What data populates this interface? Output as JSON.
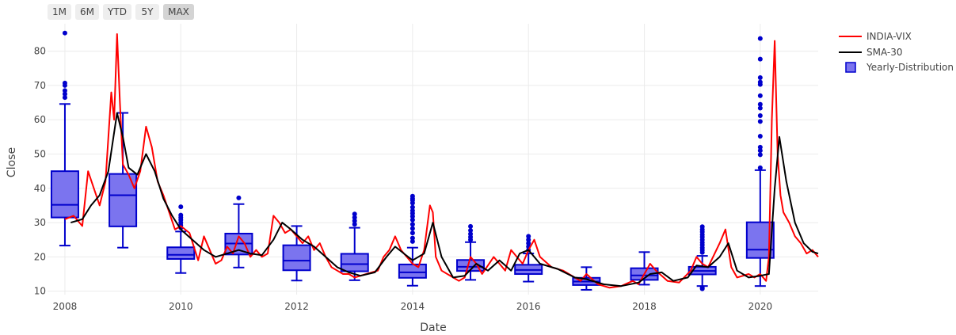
{
  "range_selector": {
    "buttons": [
      "1M",
      "6M",
      "YTD",
      "5Y",
      "MAX"
    ],
    "active": "MAX"
  },
  "chart_data": {
    "type": "line",
    "title": "",
    "xlabel": "Date",
    "ylabel": "Close",
    "xlim": [
      2007.7,
      2021.0
    ],
    "ylim": [
      9.0,
      88.0
    ],
    "x_ticks": [
      "2008",
      "2010",
      "2012",
      "2014",
      "2016",
      "2018",
      "2020"
    ],
    "y_ticks": [
      10,
      20,
      30,
      40,
      50,
      60,
      70,
      80
    ],
    "grid": true,
    "legend": {
      "placement": "top-right",
      "entries": [
        "INDIA-VIX",
        "SMA-30",
        "Yearly-Distribution"
      ]
    },
    "colors": {
      "vix": "#ff0000",
      "sma": "#000000",
      "box_fill": "#7b74ef",
      "box_line": "#0000cc",
      "grid": "#ebebeb"
    },
    "series": [
      {
        "name": "INDIA-VIX",
        "points": [
          [
            2008.0,
            31
          ],
          [
            2008.15,
            32
          ],
          [
            2008.3,
            29
          ],
          [
            2008.4,
            45
          ],
          [
            2008.5,
            40
          ],
          [
            2008.6,
            35
          ],
          [
            2008.7,
            42
          ],
          [
            2008.8,
            68
          ],
          [
            2008.85,
            60
          ],
          [
            2008.9,
            85
          ],
          [
            2008.95,
            65
          ],
          [
            2009.0,
            47
          ],
          [
            2009.1,
            44
          ],
          [
            2009.2,
            40
          ],
          [
            2009.3,
            45
          ],
          [
            2009.4,
            58
          ],
          [
            2009.5,
            52
          ],
          [
            2009.6,
            42
          ],
          [
            2009.7,
            38
          ],
          [
            2009.8,
            33
          ],
          [
            2009.9,
            28
          ],
          [
            2010.0,
            29
          ],
          [
            2010.15,
            27
          ],
          [
            2010.3,
            19
          ],
          [
            2010.4,
            26
          ],
          [
            2010.5,
            22
          ],
          [
            2010.6,
            18
          ],
          [
            2010.7,
            19
          ],
          [
            2010.8,
            23
          ],
          [
            2010.9,
            21
          ],
          [
            2011.0,
            26
          ],
          [
            2011.1,
            24
          ],
          [
            2011.2,
            20
          ],
          [
            2011.3,
            22
          ],
          [
            2011.4,
            20
          ],
          [
            2011.5,
            21
          ],
          [
            2011.6,
            32
          ],
          [
            2011.7,
            30
          ],
          [
            2011.8,
            27
          ],
          [
            2011.9,
            28
          ],
          [
            2012.0,
            26
          ],
          [
            2012.1,
            24
          ],
          [
            2012.2,
            26
          ],
          [
            2012.3,
            22
          ],
          [
            2012.4,
            24
          ],
          [
            2012.5,
            20
          ],
          [
            2012.6,
            17
          ],
          [
            2012.7,
            16
          ],
          [
            2012.8,
            15
          ],
          [
            2012.9,
            15
          ],
          [
            2013.0,
            14
          ],
          [
            2013.2,
            15
          ],
          [
            2013.4,
            16
          ],
          [
            2013.5,
            20
          ],
          [
            2013.6,
            22
          ],
          [
            2013.7,
            26
          ],
          [
            2013.8,
            22
          ],
          [
            2013.9,
            20
          ],
          [
            2014.0,
            18
          ],
          [
            2014.1,
            17
          ],
          [
            2014.2,
            22
          ],
          [
            2014.3,
            35
          ],
          [
            2014.35,
            33
          ],
          [
            2014.4,
            20
          ],
          [
            2014.5,
            16
          ],
          [
            2014.7,
            14
          ],
          [
            2014.8,
            13
          ],
          [
            2014.9,
            14
          ],
          [
            2015.0,
            20
          ],
          [
            2015.1,
            18
          ],
          [
            2015.2,
            15
          ],
          [
            2015.4,
            20
          ],
          [
            2015.6,
            16
          ],
          [
            2015.7,
            22
          ],
          [
            2015.8,
            20
          ],
          [
            2015.9,
            18
          ],
          [
            2016.0,
            22
          ],
          [
            2016.1,
            25
          ],
          [
            2016.2,
            20
          ],
          [
            2016.4,
            17
          ],
          [
            2016.6,
            16
          ],
          [
            2016.8,
            14
          ],
          [
            2016.9,
            13
          ],
          [
            2017.0,
            15
          ],
          [
            2017.2,
            12
          ],
          [
            2017.4,
            11
          ],
          [
            2017.6,
            11.5
          ],
          [
            2017.8,
            13
          ],
          [
            2017.9,
            12
          ],
          [
            2018.0,
            15
          ],
          [
            2018.1,
            18
          ],
          [
            2018.2,
            16
          ],
          [
            2018.4,
            13
          ],
          [
            2018.6,
            12.5
          ],
          [
            2018.8,
            16
          ],
          [
            2018.9,
            20
          ],
          [
            2019.0,
            18
          ],
          [
            2019.1,
            17
          ],
          [
            2019.3,
            24
          ],
          [
            2019.4,
            28
          ],
          [
            2019.5,
            17
          ],
          [
            2019.6,
            14
          ],
          [
            2019.8,
            15
          ],
          [
            2019.9,
            14
          ],
          [
            2020.0,
            15
          ],
          [
            2020.1,
            13
          ],
          [
            2020.15,
            20
          ],
          [
            2020.2,
            60
          ],
          [
            2020.25,
            83
          ],
          [
            2020.3,
            50
          ],
          [
            2020.35,
            38
          ],
          [
            2020.4,
            33
          ],
          [
            2020.5,
            30
          ],
          [
            2020.6,
            26
          ],
          [
            2020.7,
            24
          ],
          [
            2020.8,
            21
          ],
          [
            2020.9,
            22
          ],
          [
            2021.0,
            20
          ]
        ]
      },
      {
        "name": "SMA-30",
        "points": [
          [
            2008.1,
            30
          ],
          [
            2008.3,
            31
          ],
          [
            2008.45,
            35
          ],
          [
            2008.6,
            38
          ],
          [
            2008.75,
            45
          ],
          [
            2008.9,
            62
          ],
          [
            2009.0,
            55
          ],
          [
            2009.1,
            46
          ],
          [
            2009.25,
            44
          ],
          [
            2009.4,
            50
          ],
          [
            2009.55,
            45
          ],
          [
            2009.7,
            37
          ],
          [
            2009.85,
            32
          ],
          [
            2010.0,
            28
          ],
          [
            2010.2,
            25
          ],
          [
            2010.4,
            22
          ],
          [
            2010.6,
            20
          ],
          [
            2010.8,
            21
          ],
          [
            2011.0,
            22
          ],
          [
            2011.2,
            21
          ],
          [
            2011.4,
            20.5
          ],
          [
            2011.6,
            25
          ],
          [
            2011.75,
            30
          ],
          [
            2011.9,
            28
          ],
          [
            2012.1,
            25
          ],
          [
            2012.3,
            23
          ],
          [
            2012.5,
            20
          ],
          [
            2012.7,
            17
          ],
          [
            2012.9,
            15.5
          ],
          [
            2013.1,
            14.5
          ],
          [
            2013.35,
            15.5
          ],
          [
            2013.55,
            20
          ],
          [
            2013.7,
            23
          ],
          [
            2013.85,
            21
          ],
          [
            2014.0,
            19
          ],
          [
            2014.2,
            21
          ],
          [
            2014.35,
            30
          ],
          [
            2014.5,
            20
          ],
          [
            2014.7,
            14
          ],
          [
            2014.9,
            14.5
          ],
          [
            2015.1,
            18
          ],
          [
            2015.3,
            16
          ],
          [
            2015.5,
            19
          ],
          [
            2015.7,
            16
          ],
          [
            2015.85,
            21
          ],
          [
            2016.0,
            22
          ],
          [
            2016.2,
            18
          ],
          [
            2016.5,
            16.5
          ],
          [
            2016.8,
            14
          ],
          [
            2017.0,
            13.5
          ],
          [
            2017.3,
            12
          ],
          [
            2017.6,
            11.5
          ],
          [
            2017.9,
            12.5
          ],
          [
            2018.1,
            15
          ],
          [
            2018.3,
            15.5
          ],
          [
            2018.5,
            13
          ],
          [
            2018.75,
            14
          ],
          [
            2018.9,
            17.5
          ],
          [
            2019.1,
            17
          ],
          [
            2019.3,
            20
          ],
          [
            2019.45,
            24
          ],
          [
            2019.6,
            16
          ],
          [
            2019.8,
            14
          ],
          [
            2020.0,
            14.5
          ],
          [
            2020.15,
            15
          ],
          [
            2020.25,
            40
          ],
          [
            2020.33,
            55
          ],
          [
            2020.45,
            42
          ],
          [
            2020.6,
            30
          ],
          [
            2020.75,
            24
          ],
          [
            2020.9,
            21.5
          ],
          [
            2021.0,
            21
          ]
        ]
      }
    ],
    "boxes": {
      "name": "Yearly-Distribution",
      "items": [
        {
          "year": "2008",
          "x": 2008.0,
          "min": 23.3,
          "q1": 31.5,
          "median": 35.2,
          "q3": 45.0,
          "max": 64.6,
          "outliers": [
            85.3,
            70.7,
            70.0,
            68.5,
            67.5,
            66.5
          ]
        },
        {
          "year": "2009",
          "x": 2009.0,
          "min": 22.7,
          "q1": 28.9,
          "median": 38.0,
          "q3": 44.2,
          "max": 62.0,
          "outliers": []
        },
        {
          "year": "2010",
          "x": 2010.0,
          "min": 15.3,
          "q1": 19.4,
          "median": 20.6,
          "q3": 22.8,
          "max": 27.4,
          "outliers": [
            34.6,
            32.2,
            31.5,
            30.8,
            30.0,
            29.2,
            28.5
          ]
        },
        {
          "year": "2011",
          "x": 2011.0,
          "min": 16.9,
          "q1": 20.7,
          "median": 23.9,
          "q3": 26.8,
          "max": 35.4,
          "outliers": [
            37.2
          ]
        },
        {
          "year": "2012",
          "x": 2012.0,
          "min": 13.1,
          "q1": 16.1,
          "median": 18.9,
          "q3": 23.4,
          "max": 29.0,
          "outliers": []
        },
        {
          "year": "2013",
          "x": 2013.0,
          "min": 13.2,
          "q1": 15.8,
          "median": 17.9,
          "q3": 20.9,
          "max": 28.5,
          "outliers": [
            32.5,
            31.5,
            30.5,
            29.5
          ]
        },
        {
          "year": "2014",
          "x": 2014.0,
          "min": 11.6,
          "q1": 13.9,
          "median": 15.5,
          "q3": 17.8,
          "max": 22.7,
          "outliers": [
            37.7,
            37.0,
            36.5,
            35.7,
            34.5,
            33.5,
            32.7,
            31.8,
            30.8,
            29.5,
            28.3,
            27.0,
            25.5,
            24.5
          ]
        },
        {
          "year": "2015",
          "x": 2015.0,
          "min": 13.3,
          "q1": 15.9,
          "median": 17.1,
          "q3": 19.1,
          "max": 24.3,
          "outliers": [
            28.9,
            27.7,
            26.7,
            25.8,
            25.0
          ]
        },
        {
          "year": "2016",
          "x": 2016.0,
          "min": 12.8,
          "q1": 15.0,
          "median": 16.2,
          "q3": 17.7,
          "max": 21.0,
          "outliers": [
            26.0,
            25.0,
            24.0,
            23.0,
            22.0
          ]
        },
        {
          "year": "2017",
          "x": 2017.0,
          "min": 10.4,
          "q1": 11.8,
          "median": 12.8,
          "q3": 13.9,
          "max": 17.0,
          "outliers": []
        },
        {
          "year": "2018",
          "x": 2018.0,
          "min": 11.9,
          "q1": 13.3,
          "median": 14.6,
          "q3": 16.7,
          "max": 21.4,
          "outliers": []
        },
        {
          "year": "2019",
          "x": 2019.0,
          "min": 11.5,
          "q1": 14.9,
          "median": 15.9,
          "q3": 17.1,
          "max": 20.3,
          "outliers": [
            28.8,
            28.0,
            27.3,
            26.5,
            25.8,
            25.0,
            24.2,
            23.5,
            22.7,
            22.0,
            21.3,
            11.0,
            10.7
          ]
        },
        {
          "year": "2020",
          "x": 2020.0,
          "min": 11.5,
          "q1": 19.7,
          "median": 22.1,
          "q3": 30.1,
          "max": 45.3,
          "outliers": [
            83.7,
            77.7,
            72.3,
            71.0,
            70.3,
            67.0,
            64.5,
            63.4,
            61.2,
            59.5,
            55.2,
            52.0,
            51.0,
            49.8,
            46.0
          ]
        }
      ]
    }
  }
}
